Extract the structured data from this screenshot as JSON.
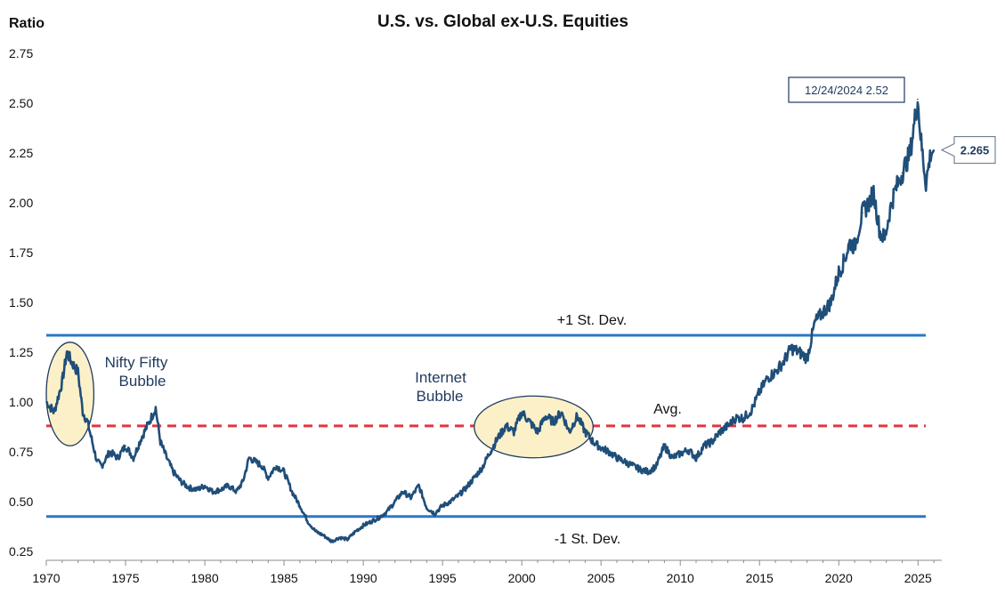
{
  "chart_data": {
    "type": "line",
    "title": "U.S. vs. Global ex-U.S. Equities",
    "ylabel": "Ratio",
    "xlabel": "",
    "ylim": [
      0.25,
      2.75
    ],
    "xlim": [
      1970,
      2026.5
    ],
    "yticks": [
      "0.25",
      "0.50",
      "0.75",
      "1.00",
      "1.25",
      "1.50",
      "1.75",
      "2.00",
      "2.25",
      "2.50",
      "2.75"
    ],
    "xticks": [
      "1970",
      "1975",
      "1980",
      "1985",
      "1990",
      "1995",
      "2000",
      "2005",
      "2010",
      "2015",
      "2020",
      "2025"
    ],
    "series": [
      {
        "name": "U.S. vs. Global ex-U.S. Equities ratio",
        "color": "#1f4e79",
        "x": [
          1970.0,
          1970.5,
          1971.0,
          1971.3,
          1971.6,
          1972.0,
          1972.3,
          1972.6,
          1972.9,
          1973.2,
          1973.5,
          1974.0,
          1974.5,
          1975.0,
          1975.5,
          1976.0,
          1976.5,
          1976.9,
          1977.2,
          1977.6,
          1978.0,
          1978.5,
          1979.0,
          1979.5,
          1980.0,
          1980.5,
          1981.0,
          1981.5,
          1982.0,
          1982.4,
          1982.8,
          1983.2,
          1983.6,
          1984.0,
          1984.5,
          1985.0,
          1985.5,
          1986.0,
          1986.5,
          1987.0,
          1987.5,
          1988.0,
          1988.5,
          1989.0,
          1989.5,
          1990.0,
          1990.5,
          1991.0,
          1991.5,
          1992.0,
          1992.5,
          1993.0,
          1993.5,
          1994.0,
          1994.5,
          1995.0,
          1995.5,
          1996.0,
          1996.5,
          1997.0,
          1997.5,
          1998.0,
          1998.5,
          1999.0,
          1999.5,
          2000.0,
          2000.5,
          2001.0,
          2001.5,
          2002.0,
          2002.5,
          2003.0,
          2003.5,
          2004.0,
          2004.5,
          2005.0,
          2005.5,
          2006.0,
          2006.5,
          2007.0,
          2007.5,
          2008.0,
          2008.5,
          2009.0,
          2009.5,
          2010.0,
          2010.5,
          2011.0,
          2011.5,
          2012.0,
          2012.5,
          2013.0,
          2013.5,
          2014.0,
          2014.5,
          2015.0,
          2015.5,
          2016.0,
          2016.5,
          2017.0,
          2017.5,
          2018.0,
          2018.5,
          2019.0,
          2019.5,
          2020.0,
          2020.3,
          2020.7,
          2021.0,
          2021.5,
          2021.9,
          2022.2,
          2022.6,
          2022.9,
          2023.2,
          2023.5,
          2024.0,
          2024.5,
          2024.98,
          2025.2,
          2025.5,
          2025.8,
          2026.0
        ],
        "values": [
          1.0,
          0.95,
          1.1,
          1.25,
          1.2,
          1.15,
          0.95,
          0.9,
          0.8,
          0.7,
          0.68,
          0.75,
          0.72,
          0.78,
          0.72,
          0.82,
          0.9,
          0.97,
          0.8,
          0.72,
          0.65,
          0.6,
          0.57,
          0.56,
          0.58,
          0.55,
          0.56,
          0.58,
          0.55,
          0.6,
          0.72,
          0.7,
          0.68,
          0.62,
          0.68,
          0.65,
          0.55,
          0.48,
          0.4,
          0.35,
          0.33,
          0.3,
          0.32,
          0.31,
          0.35,
          0.38,
          0.4,
          0.42,
          0.45,
          0.5,
          0.55,
          0.52,
          0.58,
          0.47,
          0.44,
          0.48,
          0.5,
          0.53,
          0.57,
          0.62,
          0.67,
          0.75,
          0.82,
          0.88,
          0.85,
          0.95,
          0.9,
          0.85,
          0.93,
          0.9,
          0.95,
          0.85,
          0.93,
          0.85,
          0.8,
          0.77,
          0.75,
          0.72,
          0.7,
          0.68,
          0.66,
          0.65,
          0.68,
          0.78,
          0.72,
          0.74,
          0.76,
          0.72,
          0.78,
          0.8,
          0.85,
          0.88,
          0.92,
          0.92,
          0.96,
          1.05,
          1.12,
          1.15,
          1.2,
          1.27,
          1.25,
          1.22,
          1.4,
          1.45,
          1.5,
          1.65,
          1.7,
          1.8,
          1.78,
          1.95,
          2.0,
          2.05,
          1.85,
          1.82,
          1.95,
          2.05,
          2.15,
          2.25,
          2.52,
          2.3,
          2.1,
          2.25,
          2.265
        ]
      }
    ],
    "reference_lines": [
      {
        "label": "+1 St. Dev.",
        "value": 1.335,
        "color": "#2a78c6",
        "style": "solid"
      },
      {
        "label": "Avg.",
        "value": 0.88,
        "color": "#e0383e",
        "style": "dashed"
      },
      {
        "label": "-1 St. Dev.",
        "value": 0.425,
        "color": "#2a78c6",
        "style": "solid"
      }
    ],
    "annotations": [
      {
        "label": "Nifty Fifty",
        "label2": "Bubble",
        "x_range": [
          1970.0,
          1973.0
        ],
        "y_range": [
          0.78,
          1.3
        ]
      },
      {
        "label": "Internet",
        "label2": "Bubble",
        "x_range": [
          1997.0,
          2004.5
        ],
        "y_range": [
          0.72,
          1.03
        ]
      }
    ],
    "peak_callout": {
      "text": "12/24/2024 2.52",
      "x": 2024.98,
      "y": 2.52
    },
    "last_value_label": {
      "text": "2.265",
      "y": 2.265
    },
    "grid": false,
    "legend": "none"
  }
}
